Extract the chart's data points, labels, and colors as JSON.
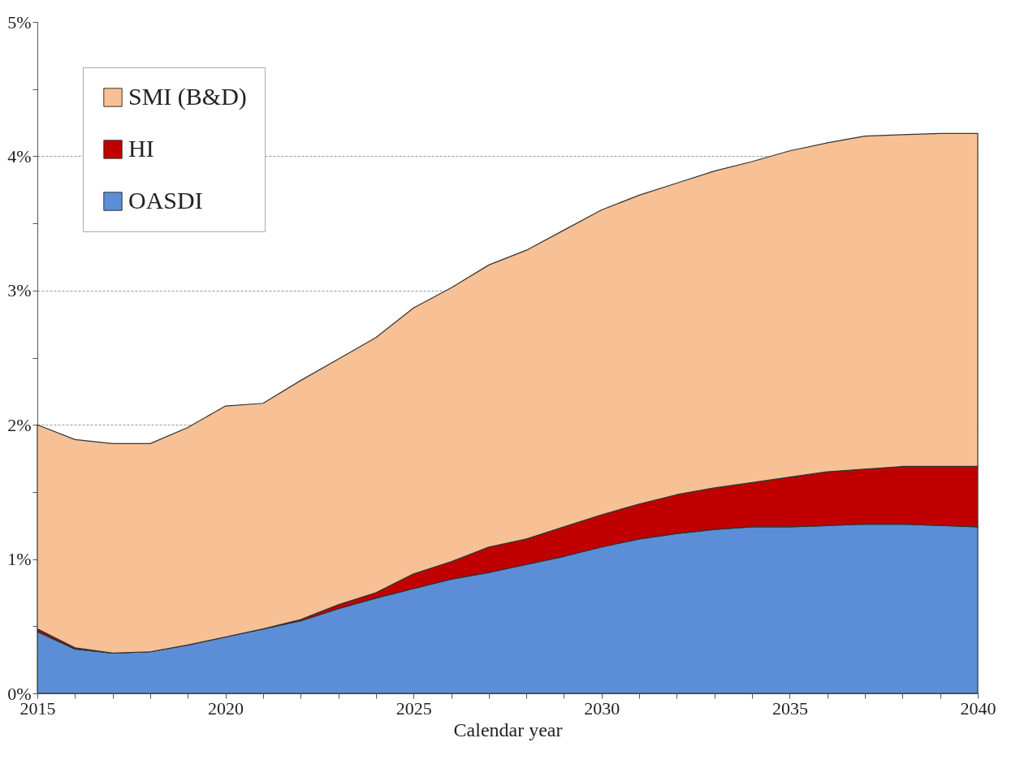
{
  "chart_data": {
    "type": "area",
    "xlabel": "Calendar year",
    "stacked": true,
    "grid": "y",
    "legend": "top left",
    "x": [
      2015,
      2016,
      2017,
      2018,
      2019,
      2020,
      2021,
      2022,
      2023,
      2024,
      2025,
      2026,
      2027,
      2028,
      2029,
      2030,
      2031,
      2032,
      2033,
      2034,
      2035,
      2036,
      2037,
      2038,
      2039,
      2040
    ],
    "xlim": [
      2015,
      2040
    ],
    "xticks": [
      2015,
      {
        "value": 2016,
        "label": null
      },
      {
        "value": 2017,
        "label": null
      },
      {
        "value": 2018,
        "label": null
      },
      {
        "value": 2019,
        "label": null
      },
      2020,
      {
        "value": 2021,
        "label": null
      },
      {
        "value": 2022,
        "label": null
      },
      {
        "value": 2023,
        "label": null
      },
      {
        "value": 2024,
        "label": null
      },
      2025,
      {
        "value": 2026,
        "label": null
      },
      {
        "value": 2027,
        "label": null
      },
      {
        "value": 2028,
        "label": null
      },
      {
        "value": 2029,
        "label": null
      },
      2030,
      {
        "value": 2031,
        "label": null
      },
      {
        "value": 2032,
        "label": null
      },
      {
        "value": 2033,
        "label": null
      },
      {
        "value": 2034,
        "label": null
      },
      2035,
      {
        "value": 2036,
        "label": null
      },
      {
        "value": 2037,
        "label": null
      },
      {
        "value": 2038,
        "label": null
      },
      {
        "value": 2039,
        "label": null
      },
      2040
    ],
    "ylim": [
      0,
      5
    ],
    "yticks": [
      {
        "value": 0,
        "label": "0%"
      },
      {
        "value": 0.5,
        "label": null
      },
      {
        "value": 1,
        "label": "1%"
      },
      {
        "value": 1.5,
        "label": null
      },
      {
        "value": 2,
        "label": "2%"
      },
      {
        "value": 2.5,
        "label": null
      },
      {
        "value": 3,
        "label": "3%"
      },
      {
        "value": 3.5,
        "label": null
      },
      {
        "value": 4,
        "label": "4%"
      },
      {
        "value": 4.5,
        "label": null
      },
      {
        "value": 5,
        "label": "5%"
      }
    ],
    "series": [
      {
        "name": "OASDI",
        "color": "#5b8ed6",
        "values": [
          0.46,
          0.33,
          0.3,
          0.31,
          0.36,
          0.42,
          0.48,
          0.54,
          0.63,
          0.71,
          0.78,
          0.85,
          0.9,
          0.96,
          1.02,
          1.09,
          1.15,
          1.19,
          1.22,
          1.24,
          1.24,
          1.25,
          1.26,
          1.26,
          1.25,
          1.24
        ]
      },
      {
        "name": "HI",
        "color": "#c00000",
        "values": [
          0.02,
          0.01,
          0,
          0,
          0,
          0,
          0,
          0.01,
          0.03,
          0.04,
          0.11,
          0.13,
          0.19,
          0.19,
          0.22,
          0.24,
          0.26,
          0.29,
          0.31,
          0.33,
          0.37,
          0.4,
          0.41,
          0.43,
          0.44,
          0.45
        ]
      },
      {
        "name": "SMI (B&D)",
        "color": "#f8c095",
        "values": [
          1.52,
          1.55,
          1.56,
          1.55,
          1.62,
          1.72,
          1.68,
          1.78,
          1.83,
          1.9,
          1.98,
          2.04,
          2.1,
          2.15,
          2.21,
          2.27,
          2.3,
          2.32,
          2.36,
          2.39,
          2.43,
          2.45,
          2.48,
          2.47,
          2.48,
          2.48
        ]
      }
    ]
  }
}
